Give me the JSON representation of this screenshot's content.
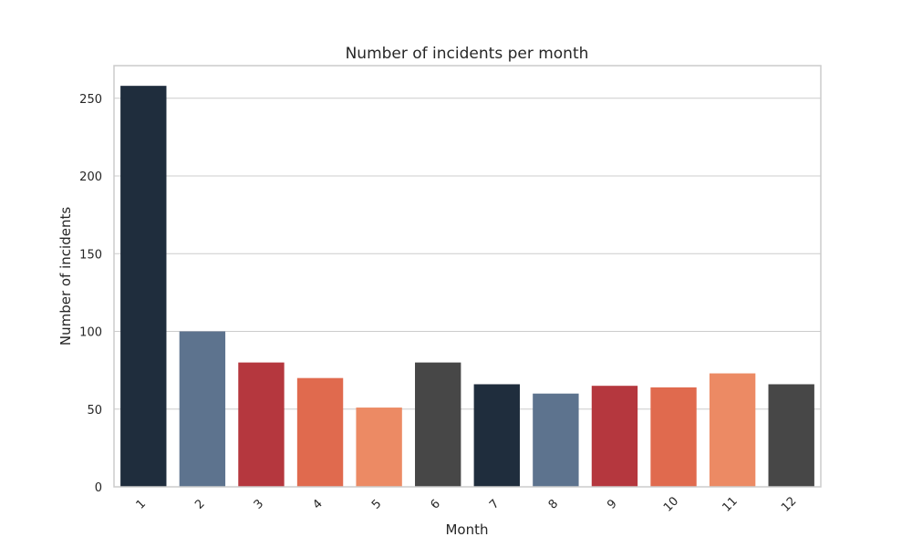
{
  "chart_data": {
    "type": "bar",
    "title": "Number of incidents per month",
    "xlabel": "Month",
    "ylabel": "Number of incidents",
    "categories": [
      "1",
      "2",
      "3",
      "4",
      "5",
      "6",
      "7",
      "8",
      "9",
      "10",
      "11",
      "12"
    ],
    "values": [
      258,
      100,
      80,
      70,
      51,
      80,
      66,
      60,
      65,
      64,
      73,
      66
    ],
    "colors": [
      "#1f2d3d",
      "#5d738e",
      "#b5373e",
      "#e06a4e",
      "#ec8a64",
      "#474747",
      "#1f2d3d",
      "#5d738e",
      "#b5373e",
      "#e06a4e",
      "#ec8a64",
      "#474747"
    ],
    "ylim": [
      0,
      271
    ],
    "yticks": [
      "0",
      "50",
      "100",
      "150",
      "200",
      "250"
    ],
    "grid": "horizontal",
    "legend": "none"
  }
}
